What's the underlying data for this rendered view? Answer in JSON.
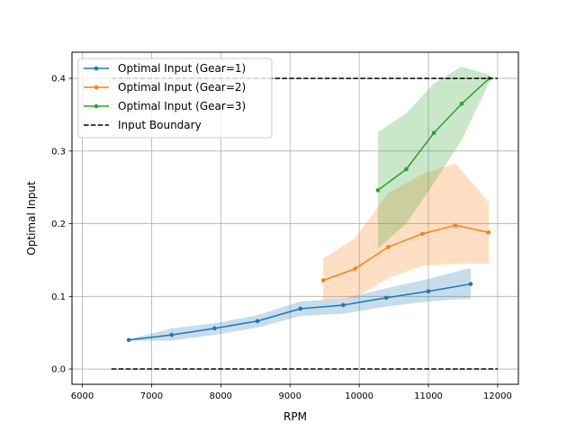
{
  "chart_data": {
    "type": "line",
    "xlabel": "RPM",
    "ylabel": "Optimal Input",
    "xlim": [
      5850,
      12300
    ],
    "ylim": [
      -0.021,
      0.436
    ],
    "xticks": [
      6000,
      7000,
      8000,
      9000,
      10000,
      11000,
      12000
    ],
    "xtick_labels": [
      "6000",
      "7000",
      "8000",
      "9000",
      "10000",
      "11000",
      "12000"
    ],
    "yticks": [
      0.0,
      0.1,
      0.2,
      0.3,
      0.4
    ],
    "ytick_labels": [
      "0.0",
      "0.1",
      "0.2",
      "0.3",
      "0.4"
    ],
    "grid": true,
    "legend_position": "upper-left",
    "series": [
      {
        "name": "Optimal Input (Gear=1)",
        "color": "#1f77b4",
        "x": [
          6670,
          7290,
          7910,
          8530,
          9150,
          9770,
          10390,
          11000,
          11610
        ],
        "y": [
          0.04,
          0.047,
          0.056,
          0.066,
          0.083,
          0.088,
          0.098,
          0.107,
          0.117
        ],
        "band_lower": [
          0.039,
          0.039,
          0.047,
          0.057,
          0.073,
          0.076,
          0.086,
          0.093,
          0.097
        ],
        "band_upper": [
          0.041,
          0.056,
          0.063,
          0.074,
          0.093,
          0.097,
          0.111,
          0.124,
          0.139
        ]
      },
      {
        "name": "Optimal Input (Gear=2)",
        "color": "#ff7f0e",
        "x": [
          9480,
          9940,
          10420,
          10910,
          11390,
          11870
        ],
        "y": [
          0.122,
          0.138,
          0.168,
          0.186,
          0.198,
          0.188
        ],
        "band_lower": [
          0.095,
          0.098,
          0.125,
          0.142,
          0.145,
          0.145
        ],
        "band_upper": [
          0.152,
          0.18,
          0.242,
          0.268,
          0.283,
          0.23
        ]
      },
      {
        "name": "Optimal Input (Gear=3)",
        "color": "#2ca02c",
        "x": [
          10270,
          10680,
          11080,
          11480,
          11880
        ],
        "y": [
          0.246,
          0.275,
          0.325,
          0.365,
          0.4
        ],
        "band_lower": [
          0.166,
          0.2,
          0.256,
          0.315,
          0.395
        ],
        "band_upper": [
          0.326,
          0.352,
          0.393,
          0.416,
          0.405
        ]
      },
      {
        "name": "Input Boundary",
        "color": "#000000",
        "dashed": true,
        "segments": [
          {
            "x": [
              6420,
              12000
            ],
            "y": [
              0.0,
              0.0
            ]
          },
          {
            "x": [
              6420,
              12000
            ],
            "y": [
              0.4,
              0.4
            ]
          }
        ]
      }
    ]
  }
}
